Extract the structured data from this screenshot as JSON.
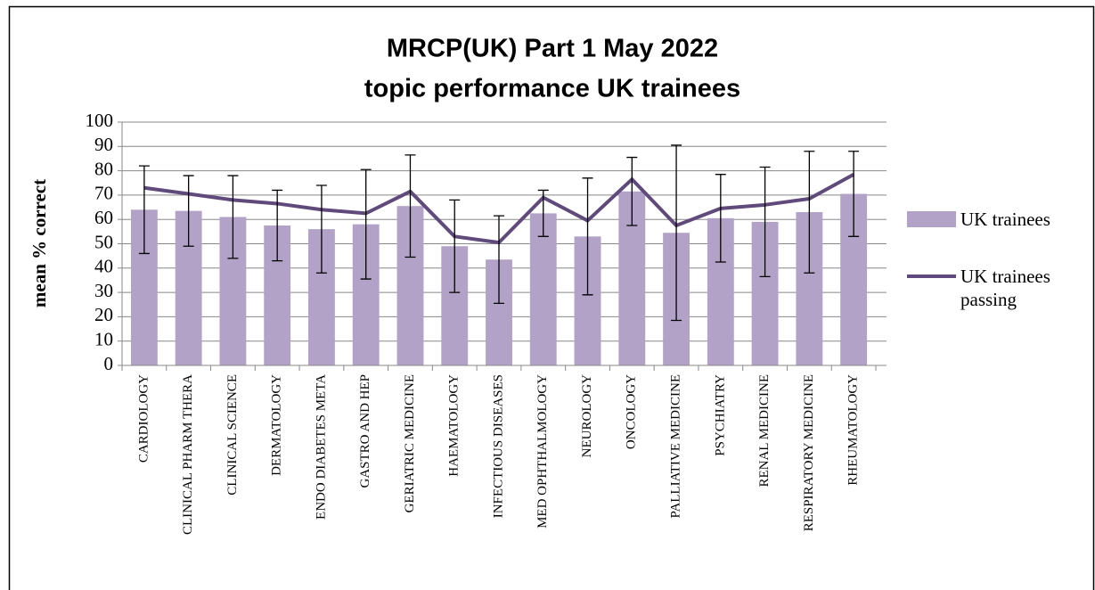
{
  "chart_data": {
    "type": "bar",
    "title": [
      "MRCP(UK) Part 1 May 2022",
      "topic performance UK trainees"
    ],
    "ylabel": "mean % correct",
    "categories": [
      "CARDIOLOGY",
      "CLINICAL PHARM THERA",
      "CLINICAL SCIENCE",
      "DERMATOLOGY",
      "ENDO DIABETES META",
      "GASTRO AND HEP",
      "GERIATRIC MEDICINE",
      "HAEMATOLOGY",
      "INFECTIOUS DISEASES",
      "MED OPHTHALMOLOGY",
      "NEUROLOGY",
      "ONCOLOGY",
      "PALLIATIVE MEDICINE",
      "PSYCHIATRY",
      "RENAL MEDICINE",
      "RESPIRATORY MEDICINE",
      "RHEUMATOLOGY"
    ],
    "series": [
      {
        "name": "UK trainees",
        "type": "bar",
        "color": "#b3a2c7",
        "values": [
          64,
          63.5,
          61,
          57.5,
          56,
          58,
          65.5,
          49,
          43.5,
          62.5,
          53,
          71.5,
          54.5,
          60.5,
          59,
          63,
          70.5
        ],
        "errors": [
          18,
          14.5,
          17,
          14.5,
          18,
          22.5,
          21,
          19,
          18,
          9.5,
          24,
          14,
          36,
          18,
          22.5,
          25,
          17.5
        ]
      },
      {
        "name": "UK trainees passing",
        "type": "line",
        "color": "#604a7b",
        "values": [
          73,
          70.5,
          68,
          66.5,
          64,
          62.5,
          71.5,
          53,
          50.5,
          69,
          59.5,
          76.5,
          57.5,
          64.5,
          66,
          68.5,
          78.5
        ]
      }
    ],
    "ylim": [
      0,
      100
    ],
    "yticks": [
      0,
      10,
      20,
      30,
      40,
      50,
      60,
      70,
      80,
      90,
      100
    ],
    "grid": true,
    "legend": "right"
  }
}
